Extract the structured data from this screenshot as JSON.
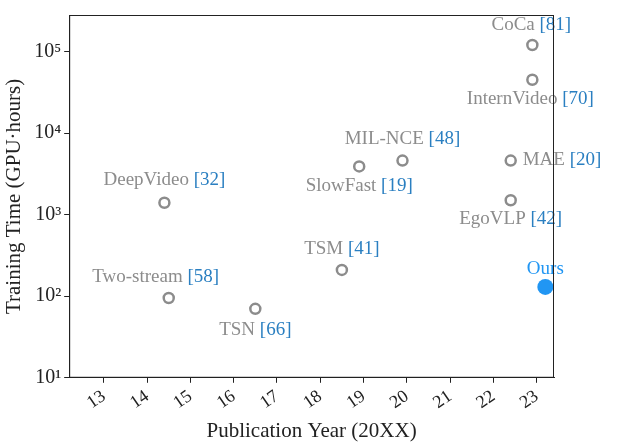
{
  "chart_data": {
    "type": "scatter",
    "log": "y",
    "grid": false,
    "x_label": "Publication Year (20XX)",
    "y_label": "Training Time (GPU·hours)",
    "xlim": [
      12.2,
      23.4
    ],
    "xticks": [
      13,
      14,
      15,
      16,
      17,
      18,
      19,
      20,
      21,
      22,
      23
    ],
    "ylim": [
      10,
      280000
    ],
    "yticks": [
      {
        "value": 10,
        "label": "10¹"
      },
      {
        "value": 100,
        "label": "10²"
      },
      {
        "value": 1000,
        "label": "10³"
      },
      {
        "value": 10000,
        "label": "10⁴"
      },
      {
        "value": 100000,
        "label": "10⁵"
      }
    ],
    "series": [
      {
        "marker": "open_circle",
        "color": "#8c8c8c",
        "x": [
          14.4,
          14.5,
          16.5,
          18.5,
          18.9,
          19.9,
          22.4,
          22.4,
          22.9,
          22.9
        ],
        "values": [
          1400,
          95,
          70,
          210,
          3900,
          4600,
          4600,
          1500,
          45000,
          120000
        ],
        "labels": [
          "DeepVideo",
          "Two-stream",
          "TSN",
          "TSM",
          "SlowFast",
          "MIL-NCE",
          "MAE",
          "EgoVLP",
          "InternVideo",
          "CoCa"
        ],
        "citations": [
          "[32]",
          "[58]",
          "[66]",
          "[41]",
          "[19]",
          "[48]",
          "[20]",
          "[42]",
          "[70]",
          "[81]"
        ]
      },
      {
        "marker": "circle",
        "color": "#2196f3",
        "x": [
          23.2
        ],
        "values": [
          130
        ],
        "labels": [
          "Ours"
        ],
        "citations": [
          null
        ]
      }
    ]
  }
}
